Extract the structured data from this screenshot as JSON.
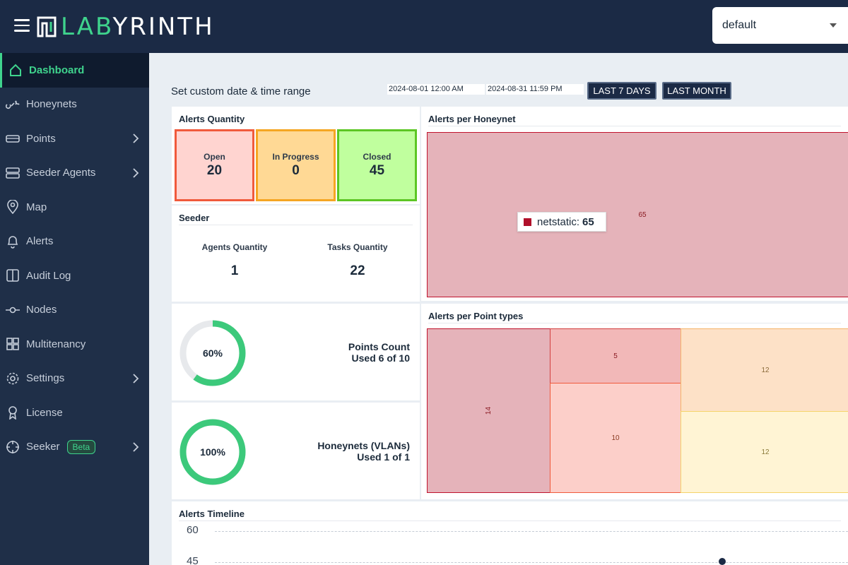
{
  "header": {
    "logo_prefix": "LAB",
    "logo_suffix": "YRINTH",
    "tenant_value": "default"
  },
  "sidebar": {
    "items": [
      {
        "label": "Dashboard",
        "icon": "home-icon",
        "active": true,
        "has_submenu": false
      },
      {
        "label": "Honeynets",
        "icon": "link-icon",
        "active": false,
        "has_submenu": false
      },
      {
        "label": "Points",
        "icon": "hard-drive-icon",
        "active": false,
        "has_submenu": true
      },
      {
        "label": "Seeder Agents",
        "icon": "server-icon",
        "active": false,
        "has_submenu": true
      },
      {
        "label": "Map",
        "icon": "map-pin-icon",
        "active": false,
        "has_submenu": false
      },
      {
        "label": "Alerts",
        "icon": "bell-icon",
        "active": false,
        "has_submenu": false
      },
      {
        "label": "Audit Log",
        "icon": "columns-icon",
        "active": false,
        "has_submenu": false
      },
      {
        "label": "Nodes",
        "icon": "commit-node-icon",
        "active": false,
        "has_submenu": false
      },
      {
        "label": "Multitenancy",
        "icon": "grid-icon",
        "active": false,
        "has_submenu": false
      },
      {
        "label": "Settings",
        "icon": "gear-icon",
        "active": false,
        "has_submenu": true
      },
      {
        "label": "License",
        "icon": "award-icon",
        "active": false,
        "has_submenu": false
      },
      {
        "label": "Seeker",
        "icon": "crosshair-icon",
        "active": false,
        "has_submenu": true,
        "badge": "Beta"
      }
    ]
  },
  "date_range": {
    "label": "Set custom date & time range",
    "start": "2024-08-01 12:00 AM",
    "end": "2024-08-31 11:59 PM",
    "last7_button": "LAST 7 DAYS",
    "last_month_button": "LAST MONTH"
  },
  "alerts_quantity": {
    "title": "Alerts Quantity",
    "open": {
      "label": "Open",
      "value": "20"
    },
    "in_progress": {
      "label": "In Progress",
      "value": "0"
    },
    "closed": {
      "label": "Closed",
      "value": "45"
    }
  },
  "seeder": {
    "title": "Seeder",
    "agents_label": "Agents Quantity",
    "agents_value": "1",
    "tasks_label": "Tasks Quantity",
    "tasks_value": "22"
  },
  "points_count": {
    "percent_label": "60%",
    "percent": 60,
    "title": "Points Count",
    "usage": "Used 6 of 10"
  },
  "honeynets_vlans": {
    "percent_label": "100%",
    "percent": 100,
    "title": "Honeynets (VLANs)",
    "usage": "Used 1 of 1"
  },
  "alerts_per_honeynet": {
    "title": "Alerts per Honeynet",
    "tile_value": "65",
    "tooltip_name": "netstatic:",
    "tooltip_value": "65"
  },
  "alerts_per_point_types": {
    "title": "Alerts per Point types",
    "tiles": [
      "14",
      "5",
      "10",
      "12",
      "12"
    ]
  },
  "alerts_timeline": {
    "title": "Alerts Timeline",
    "yticks": [
      "60",
      "45"
    ]
  },
  "colors": {
    "accent": "#3fd38d",
    "navy": "#1b2a45",
    "open_border": "#f05a3c",
    "in_progress_border": "#f5a623",
    "closed_border": "#5cc624"
  }
}
